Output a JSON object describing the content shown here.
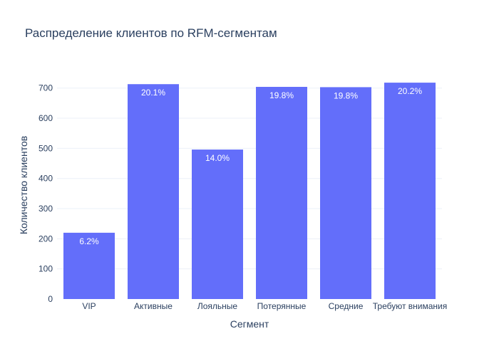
{
  "chart_data": {
    "type": "bar",
    "title": "Распределение клиентов по RFM-сегментам",
    "xlabel": "Сегмент",
    "ylabel": "Количество клиентов",
    "categories": [
      "VIP",
      "Активные",
      "Лояльные",
      "Потерянные",
      "Средние",
      "Требуют внимания"
    ],
    "values": [
      220,
      713,
      496,
      704,
      703,
      718
    ],
    "data_labels": [
      "6.2%",
      "20.1%",
      "14.0%",
      "19.8%",
      "19.8%",
      "20.2%"
    ],
    "ylim": [
      0,
      756
    ],
    "yticks": [
      0,
      100,
      200,
      300,
      400,
      500,
      600,
      700
    ],
    "grid": true,
    "legend": "none",
    "colors": {
      "bar": "#636efa",
      "grid": "#ebf0f8",
      "text": "#2a3f5f",
      "label": "#ffffff"
    }
  }
}
